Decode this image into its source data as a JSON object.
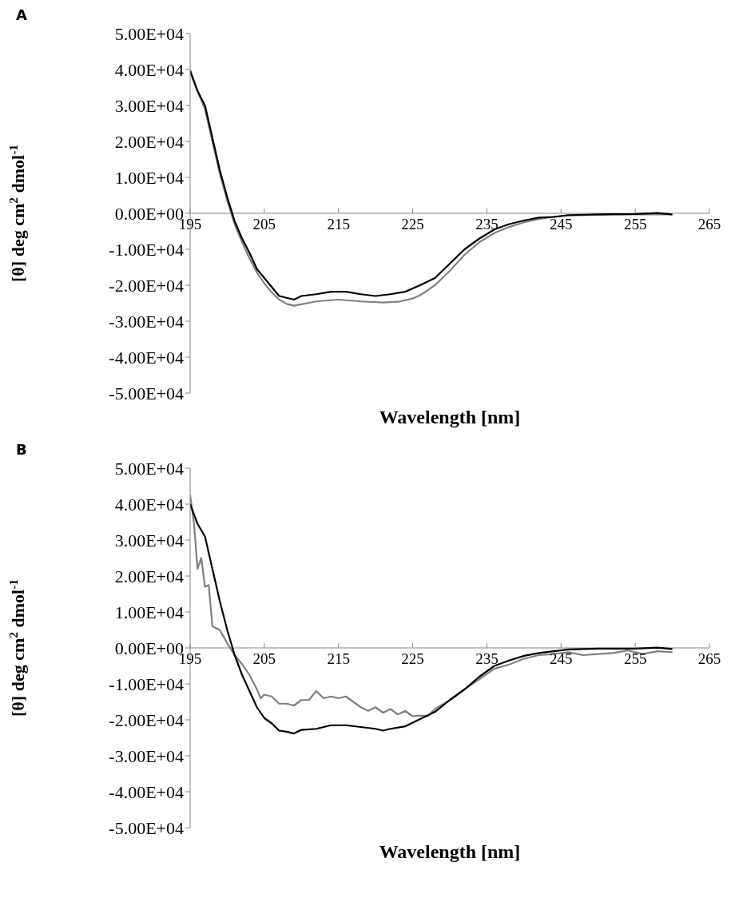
{
  "chart_data": [
    {
      "type": "line",
      "annotations": [
        "A"
      ],
      "xlabel": "Wavelength [nm]",
      "ylabel": "[θ] deg cm$^{2}$ dmol$^{-1}$",
      "xlim": [
        195,
        265
      ],
      "xticks": [
        195,
        205,
        215,
        225,
        235,
        245,
        255,
        265
      ],
      "ylim": [
        -50000,
        50000
      ],
      "yticks": [
        {
          "value": 50000,
          "label": "5.00E+04"
        },
        {
          "value": 40000,
          "label": "4.00E+04"
        },
        {
          "value": 30000,
          "label": "3.00E+04"
        },
        {
          "value": 20000,
          "label": "2.00E+04"
        },
        {
          "value": 10000,
          "label": "1.00E+04"
        },
        {
          "value": 0,
          "label": "0.00E+00"
        },
        {
          "value": -10000,
          "label": "-1.00E+04"
        },
        {
          "value": -20000,
          "label": "-2.00E+04"
        },
        {
          "value": -30000,
          "label": "-3.00E+04"
        },
        {
          "value": -40000,
          "label": "-4.00E+04"
        },
        {
          "value": -50000,
          "label": "-5.00E+04"
        }
      ],
      "marker": "none",
      "line_style": "solid",
      "series": [
        {
          "color": "#808080",
          "x": [
            195,
            196,
            197,
            198,
            199,
            200,
            201,
            202,
            203,
            204,
            205,
            206,
            207,
            208,
            209,
            210,
            212,
            215,
            218,
            221,
            223,
            225,
            226,
            228,
            230,
            232,
            234,
            236,
            238,
            240,
            242,
            244,
            246,
            250,
            255,
            260
          ],
          "values": [
            40000,
            34000,
            29000,
            20000,
            11000,
            3500,
            -3000,
            -8000,
            -12500,
            -16500,
            -19500,
            -22000,
            -24000,
            -25200,
            -25700,
            -25300,
            -24500,
            -24000,
            -24500,
            -24800,
            -24600,
            -23700,
            -22800,
            -20000,
            -16000,
            -11500,
            -8000,
            -5500,
            -3800,
            -2500,
            -1600,
            -1000,
            -600,
            -400,
            -300,
            -300
          ]
        },
        {
          "color": "#000000",
          "x": [
            195,
            196,
            197,
            198,
            199,
            200,
            201,
            202,
            203,
            204,
            205,
            206,
            207,
            208,
            209,
            210,
            212,
            214,
            216,
            218,
            220,
            222,
            224,
            226,
            228,
            230,
            232,
            234,
            236,
            238,
            240,
            242,
            244,
            246,
            250,
            255,
            258,
            260
          ],
          "values": [
            39500,
            34000,
            30000,
            21000,
            12000,
            4500,
            -2200,
            -7000,
            -11000,
            -15500,
            -18000,
            -20500,
            -23000,
            -23500,
            -24000,
            -23000,
            -22500,
            -21800,
            -21800,
            -22500,
            -23000,
            -22500,
            -21800,
            -20000,
            -18000,
            -14000,
            -10000,
            -7000,
            -4500,
            -3000,
            -2000,
            -1200,
            -1000,
            -500,
            -300,
            -200,
            100,
            -300
          ]
        }
      ]
    },
    {
      "type": "line",
      "annotations": [
        "B"
      ],
      "xlabel": "Wavelength [nm]",
      "ylabel": "[θ] deg cm$^{2}$ dmol$^{-1}$",
      "xlim": [
        195,
        265
      ],
      "xticks": [
        195,
        205,
        215,
        225,
        235,
        245,
        255,
        265
      ],
      "ylim": [
        -50000,
        50000
      ],
      "yticks": [
        {
          "value": 50000,
          "label": "5.00E+04"
        },
        {
          "value": 40000,
          "label": "4.00E+04"
        },
        {
          "value": 30000,
          "label": "3.00E+04"
        },
        {
          "value": 20000,
          "label": "2.00E+04"
        },
        {
          "value": 10000,
          "label": "1.00E+04"
        },
        {
          "value": 0,
          "label": "0.00E+00"
        },
        {
          "value": -10000,
          "label": "-1.00E+04"
        },
        {
          "value": -20000,
          "label": "-2.00E+04"
        },
        {
          "value": -30000,
          "label": "-3.00E+04"
        },
        {
          "value": -40000,
          "label": "-4.00E+04"
        },
        {
          "value": -50000,
          "label": "-5.00E+04"
        }
      ],
      "marker": "none",
      "line_style": "solid",
      "series": [
        {
          "color": "#808080",
          "x": [
            195,
            195.5,
            196,
            196.5,
            197,
            197.5,
            198,
            199,
            200,
            201,
            202,
            203,
            204,
            204.5,
            205,
            206,
            207,
            208,
            209,
            210,
            211,
            212,
            213,
            214,
            215,
            216,
            217,
            218,
            219,
            220,
            221,
            222,
            223,
            224,
            225,
            226,
            227,
            228,
            230,
            232,
            234,
            236,
            238,
            240,
            242,
            244,
            246,
            248,
            250,
            252,
            254,
            256,
            258,
            260
          ],
          "values": [
            42500,
            35000,
            22000,
            25000,
            17000,
            17500,
            6000,
            5000,
            1300,
            -2000,
            -4500,
            -7500,
            -11500,
            -14000,
            -13000,
            -13500,
            -15500,
            -15500,
            -16000,
            -14500,
            -14500,
            -12000,
            -14000,
            -13500,
            -14000,
            -13500,
            -15000,
            -16500,
            -17500,
            -16500,
            -18000,
            -17000,
            -18500,
            -17500,
            -19000,
            -18800,
            -19000,
            -17000,
            -14500,
            -11500,
            -8700,
            -5800,
            -4600,
            -3000,
            -2000,
            -1700,
            -1200,
            -2000,
            -1700,
            -1400,
            -700,
            -1700,
            -900,
            -1200
          ]
        },
        {
          "color": "#000000",
          "x": [
            195,
            196,
            197,
            198,
            199,
            200,
            201,
            202,
            203,
            204,
            205,
            206,
            207,
            208,
            209,
            210,
            212,
            214,
            216,
            218,
            220,
            221,
            222,
            224,
            226,
            228,
            230,
            232,
            234,
            236,
            238,
            240,
            242,
            244,
            246,
            250,
            255,
            258,
            260
          ],
          "values": [
            40000,
            34500,
            31000,
            22000,
            13000,
            5000,
            -2000,
            -7500,
            -12000,
            -16500,
            -19500,
            -21000,
            -23000,
            -23300,
            -23800,
            -22800,
            -22500,
            -21500,
            -21500,
            -22000,
            -22500,
            -23000,
            -22500,
            -21800,
            -19800,
            -17800,
            -14500,
            -11500,
            -8000,
            -5000,
            -3500,
            -2200,
            -1400,
            -900,
            -400,
            -200,
            -200,
            100,
            -300
          ]
        }
      ]
    }
  ]
}
